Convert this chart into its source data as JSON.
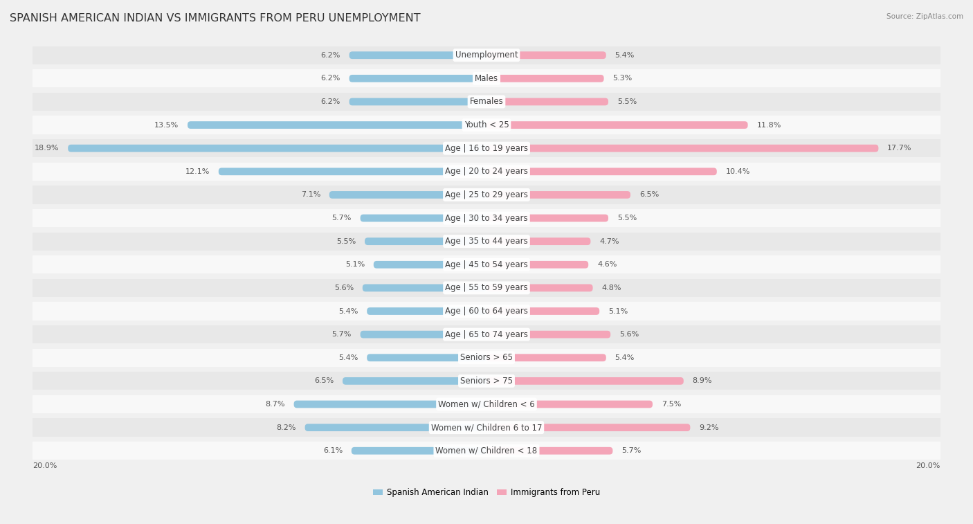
{
  "title": "SPANISH AMERICAN INDIAN VS IMMIGRANTS FROM PERU UNEMPLOYMENT",
  "source": "Source: ZipAtlas.com",
  "categories": [
    "Unemployment",
    "Males",
    "Females",
    "Youth < 25",
    "Age | 16 to 19 years",
    "Age | 20 to 24 years",
    "Age | 25 to 29 years",
    "Age | 30 to 34 years",
    "Age | 35 to 44 years",
    "Age | 45 to 54 years",
    "Age | 55 to 59 years",
    "Age | 60 to 64 years",
    "Age | 65 to 74 years",
    "Seniors > 65",
    "Seniors > 75",
    "Women w/ Children < 6",
    "Women w/ Children 6 to 17",
    "Women w/ Children < 18"
  ],
  "left_values": [
    6.2,
    6.2,
    6.2,
    13.5,
    18.9,
    12.1,
    7.1,
    5.7,
    5.5,
    5.1,
    5.6,
    5.4,
    5.7,
    5.4,
    6.5,
    8.7,
    8.2,
    6.1
  ],
  "right_values": [
    5.4,
    5.3,
    5.5,
    11.8,
    17.7,
    10.4,
    6.5,
    5.5,
    4.7,
    4.6,
    4.8,
    5.1,
    5.6,
    5.4,
    8.9,
    7.5,
    9.2,
    5.7
  ],
  "left_color": "#92c5de",
  "right_color": "#f4a5b8",
  "axis_max": 20.0,
  "bg_color": "#f0f0f0",
  "row_color_even": "#e8e8e8",
  "row_color_odd": "#f8f8f8",
  "left_label": "Spanish American Indian",
  "right_label": "Immigrants from Peru",
  "title_fontsize": 11.5,
  "label_fontsize": 8.5,
  "value_fontsize": 8,
  "source_fontsize": 7.5,
  "axis_label_fontsize": 8
}
